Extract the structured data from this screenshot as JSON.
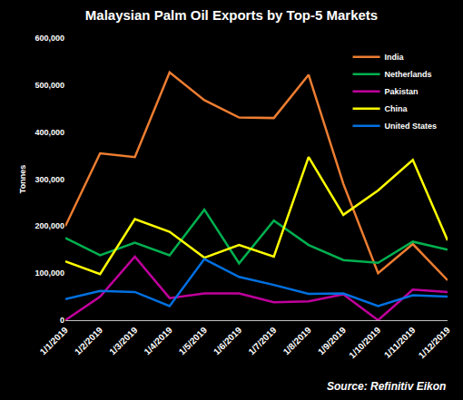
{
  "chart_data": {
    "type": "line",
    "title": "Malaysian Palm Oil Exports by Top-5 Markets",
    "y_label": "Tonnes",
    "annotations": [
      "Source: Refinitiv Eikon"
    ],
    "categories": [
      "1/1/2019",
      "1/2/2019",
      "1/3/2019",
      "1/4/2019",
      "1/5/2019",
      "1/6/2019",
      "1/7/2019",
      "1/8/2019",
      "1/9/2019",
      "1/10/2019",
      "1/11/2019",
      "1/12/2019"
    ],
    "series": [
      {
        "name": "India",
        "color": "#ed7d31",
        "values": [
          200000,
          355000,
          347000,
          527000,
          468000,
          431000,
          430000,
          522000,
          290000,
          100000,
          162000,
          85000
        ]
      },
      {
        "name": "Netherlands",
        "color": "#00b050",
        "values": [
          175000,
          138000,
          165000,
          138000,
          235000,
          121000,
          212000,
          160000,
          128000,
          122000,
          167000,
          150000
        ]
      },
      {
        "name": "Pakistan",
        "color": "#c0009c",
        "values": [
          0,
          50000,
          135000,
          47000,
          57000,
          57000,
          38000,
          40000,
          55000,
          0,
          65000,
          60000
        ]
      },
      {
        "name": "China",
        "color": "#ffff00",
        "values": [
          125000,
          98000,
          215000,
          188000,
          133000,
          160000,
          135000,
          347000,
          224000,
          276000,
          341000,
          170000
        ]
      },
      {
        "name": "United States",
        "color": "#0070e0",
        "values": [
          45000,
          62000,
          60000,
          30000,
          130000,
          92000,
          75000,
          56000,
          57000,
          30000,
          53000,
          50000
        ]
      }
    ],
    "ylim": [
      0,
      600000
    ],
    "yticks": [
      0,
      {
        "value": 100000,
        "label": "100,000"
      },
      {
        "value": 200000,
        "label": "200,000"
      },
      {
        "value": 300000,
        "label": "300,000"
      },
      {
        "value": 400000,
        "label": "400,000"
      },
      {
        "value": 500000,
        "label": "500,000"
      },
      {
        "value": 600000,
        "label": "600,000"
      }
    ],
    "grid": false,
    "legend": "upper right"
  }
}
